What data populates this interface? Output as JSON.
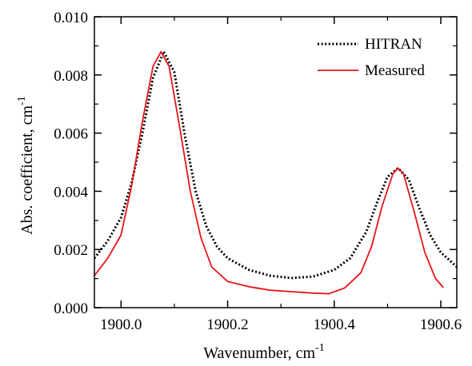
{
  "chart_data": {
    "type": "line",
    "xlabel": "Wavenumber, cm",
    "xlabel_sup": "-1",
    "ylabel": "Abs. coefficient, cm",
    "ylabel_sup": "-1",
    "xlim": [
      1899.95,
      1900.63
    ],
    "ylim": [
      0.0,
      0.01
    ],
    "x_ticks": [
      1900.0,
      1900.2,
      1900.4,
      1900.6
    ],
    "x_tick_labels": [
      "1900.0",
      "1900.2",
      "1900.4",
      "1900.6"
    ],
    "y_ticks": [
      0.0,
      0.002,
      0.004,
      0.006,
      0.008,
      0.01
    ],
    "y_tick_labels": [
      "0.000",
      "0.002",
      "0.004",
      "0.006",
      "0.008",
      "0.010"
    ],
    "grid": false,
    "legend_position": "top-right",
    "series": [
      {
        "name": "HITRAN",
        "color": "#000000",
        "style": "dotted",
        "x": [
          1899.95,
          1899.975,
          1900.0,
          1900.02,
          1900.04,
          1900.06,
          1900.08,
          1900.1,
          1900.12,
          1900.14,
          1900.16,
          1900.18,
          1900.2,
          1900.24,
          1900.28,
          1900.32,
          1900.36,
          1900.4,
          1900.43,
          1900.46,
          1900.48,
          1900.5,
          1900.52,
          1900.54,
          1900.56,
          1900.58,
          1900.6,
          1900.63
        ],
        "y": [
          0.0017,
          0.0023,
          0.0031,
          0.0043,
          0.006,
          0.0079,
          0.0088,
          0.0081,
          0.0059,
          0.004,
          0.0028,
          0.0021,
          0.0017,
          0.0013,
          0.0011,
          0.00102,
          0.00107,
          0.0013,
          0.0017,
          0.0026,
          0.0036,
          0.0045,
          0.0048,
          0.0044,
          0.0034,
          0.0025,
          0.0019,
          0.0014
        ]
      },
      {
        "name": "Measured",
        "color": "#e8141a",
        "style": "solid",
        "x": [
          1899.95,
          1899.975,
          1900.0,
          1900.02,
          1900.04,
          1900.06,
          1900.075,
          1900.09,
          1900.11,
          1900.13,
          1900.15,
          1900.17,
          1900.2,
          1900.24,
          1900.28,
          1900.32,
          1900.36,
          1900.39,
          1900.42,
          1900.45,
          1900.47,
          1900.49,
          1900.51,
          1900.52,
          1900.53,
          1900.55,
          1900.57,
          1900.59,
          1900.605
        ],
        "y": [
          0.0011,
          0.0017,
          0.0025,
          0.0042,
          0.0064,
          0.0083,
          0.0088,
          0.0083,
          0.0062,
          0.004,
          0.0024,
          0.0014,
          0.0009,
          0.00072,
          0.0006,
          0.00055,
          0.0005,
          0.00048,
          0.00068,
          0.0012,
          0.0021,
          0.0035,
          0.0046,
          0.0048,
          0.0046,
          0.0033,
          0.0019,
          0.001,
          0.00069
        ]
      }
    ]
  }
}
